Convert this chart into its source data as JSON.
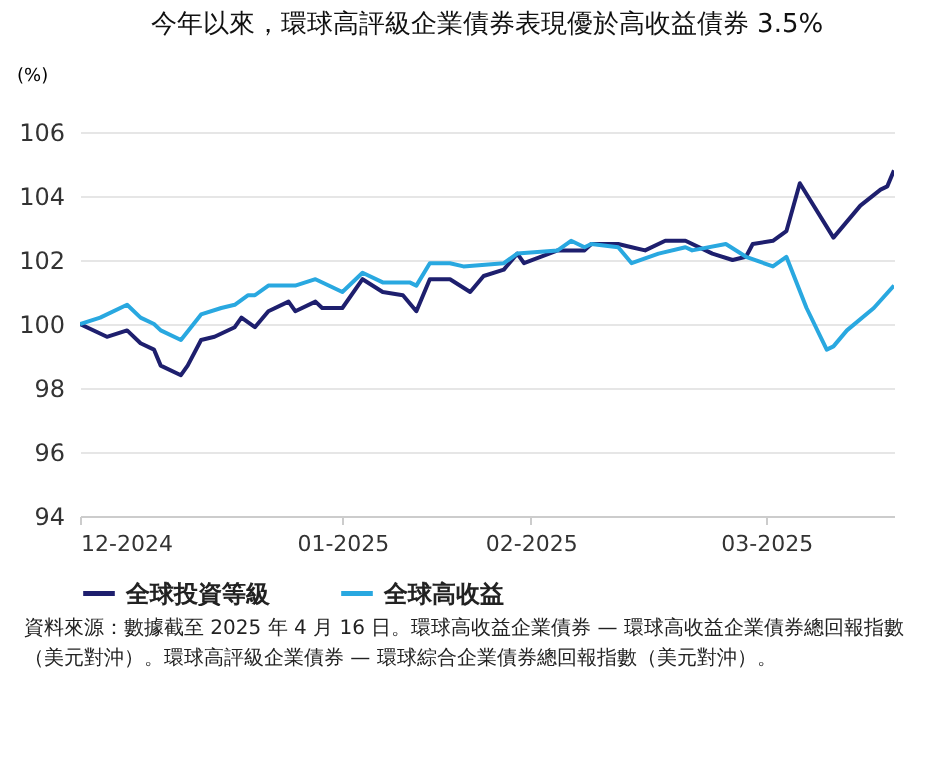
{
  "chart_data": {
    "type": "line",
    "title": "今年以來，環球高評級企業債券表現優於高收益債券 3.5%",
    "ylabel": "(%)",
    "xlim": [
      "2024-12-16",
      "2025-04-16"
    ],
    "xticks": [
      {
        "value": "2024-12-16",
        "label": "12-2024"
      },
      {
        "value": "2025-01-24",
        "label": "01-2025"
      },
      {
        "value": "2025-02-21",
        "label": "02-2025"
      },
      {
        "value": "2025-03-28",
        "label": "03-2025"
      }
    ],
    "ylim": [
      94,
      106
    ],
    "yticks": [
      94,
      96,
      98,
      100,
      102,
      104,
      106
    ],
    "grid": "y",
    "legend": "bottom",
    "series": [
      {
        "name": "全球投資等級",
        "color": "#1e1f6e",
        "x": [
          "2024-12-16",
          "2024-12-20",
          "2024-12-23",
          "2024-12-25",
          "2024-12-27",
          "2024-12-28",
          "2024-12-31",
          "2025-01-01",
          "2025-01-03",
          "2025-01-05",
          "2025-01-08",
          "2025-01-09",
          "2025-01-11",
          "2025-01-13",
          "2025-01-16",
          "2025-01-17",
          "2025-01-20",
          "2025-01-21",
          "2025-01-24",
          "2025-01-27",
          "2025-01-30",
          "2025-02-02",
          "2025-02-04",
          "2025-02-06",
          "2025-02-09",
          "2025-02-12",
          "2025-02-14",
          "2025-02-17",
          "2025-02-19",
          "2025-02-20",
          "2025-02-25",
          "2025-03-01",
          "2025-03-02",
          "2025-03-06",
          "2025-03-08",
          "2025-03-10",
          "2025-03-13",
          "2025-03-16",
          "2025-03-20",
          "2025-03-23",
          "2025-03-25",
          "2025-03-26",
          "2025-03-29",
          "2025-03-31",
          "2025-04-02",
          "2025-04-07",
          "2025-04-11",
          "2025-04-14",
          "2025-04-15",
          "2025-04-16"
        ],
        "values": [
          100,
          99.6,
          99.8,
          99.4,
          99.2,
          98.7,
          98.4,
          98.7,
          99.5,
          99.6,
          99.9,
          100.2,
          99.9,
          100.4,
          100.7,
          100.4,
          100.7,
          100.5,
          100.5,
          101.4,
          101.0,
          100.9,
          100.4,
          101.4,
          101.4,
          101.0,
          101.5,
          101.7,
          102.2,
          101.9,
          102.3,
          102.3,
          102.5,
          102.5,
          102.4,
          102.3,
          102.6,
          102.6,
          102.2,
          102.0,
          102.1,
          102.5,
          102.6,
          102.9,
          104.4,
          102.7,
          103.7,
          104.2,
          104.3,
          104.8
        ]
      },
      {
        "name": "全球高收益",
        "color": "#29a8e0",
        "x": [
          "2024-12-16",
          "2024-12-19",
          "2024-12-23",
          "2024-12-25",
          "2024-12-27",
          "2024-12-28",
          "2024-12-31",
          "2025-01-03",
          "2025-01-06",
          "2025-01-08",
          "2025-01-10",
          "2025-01-11",
          "2025-01-13",
          "2025-01-17",
          "2025-01-20",
          "2025-01-24",
          "2025-01-27",
          "2025-01-30",
          "2025-02-03",
          "2025-02-04",
          "2025-02-06",
          "2025-02-09",
          "2025-02-11",
          "2025-02-17",
          "2025-02-19",
          "2025-02-25",
          "2025-02-27",
          "2025-03-01",
          "2025-03-02",
          "2025-03-06",
          "2025-03-08",
          "2025-03-12",
          "2025-03-16",
          "2025-03-17",
          "2025-03-22",
          "2025-03-25",
          "2025-03-29",
          "2025-03-31",
          "2025-04-03",
          "2025-04-06",
          "2025-04-07",
          "2025-04-09",
          "2025-04-13",
          "2025-04-16"
        ],
        "values": [
          100,
          100.2,
          100.6,
          100.2,
          100,
          99.8,
          99.5,
          100.3,
          100.5,
          100.6,
          100.9,
          100.9,
          101.2,
          101.2,
          101.4,
          101.0,
          101.6,
          101.3,
          101.3,
          101.2,
          101.9,
          101.9,
          101.8,
          101.9,
          102.2,
          102.3,
          102.6,
          102.4,
          102.5,
          102.4,
          101.9,
          102.2,
          102.4,
          102.3,
          102.5,
          102.1,
          101.8,
          102.1,
          100.5,
          99.2,
          99.3,
          99.8,
          100.5,
          101.2
        ]
      }
    ],
    "annotations": [
      "資料來源：數據截至 2025 年 4 月 16 日。環球高收益企業債券 — 環球高收益企業債券總回報指數（美元對沖）。環球高評級企業債券 — 環球綜合企業債券總回報指數（美元對沖）。"
    ]
  }
}
